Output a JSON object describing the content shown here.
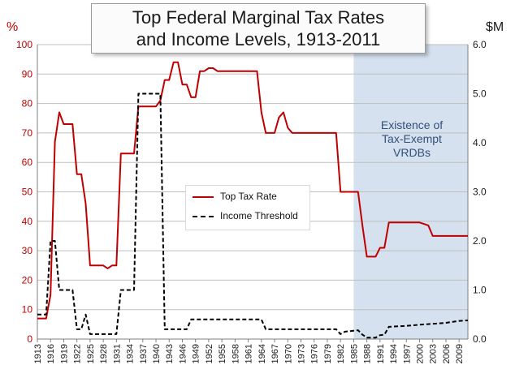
{
  "chart_data": {
    "type": "line",
    "title_lines": [
      "Top Federal Marginal Tax Rates",
      "and Income Levels, 1913-2011"
    ],
    "ylabel": "%",
    "y2label": "$M",
    "ylim": [
      0,
      100
    ],
    "y2lim": [
      0,
      6
    ],
    "xlim": [
      1913,
      2011
    ],
    "yticks": [
      "0",
      "10",
      "20",
      "30",
      "40",
      "50",
      "60",
      "70",
      "80",
      "90",
      "100"
    ],
    "y2ticks": [
      "0.0",
      "1.0",
      "2.0",
      "3.0",
      "4.0",
      "5.0",
      "6.0"
    ],
    "xticks": [
      "1913",
      "1916",
      "1919",
      "1922",
      "1925",
      "1928",
      "1931",
      "1934",
      "1937",
      "1940",
      "1943",
      "1946",
      "1949",
      "1952",
      "1955",
      "1958",
      "1961",
      "1964",
      "1967",
      "1970",
      "1973",
      "1976",
      "1979",
      "1982",
      "1985",
      "1988",
      "1991",
      "1994",
      "1997",
      "2000",
      "2003",
      "2006",
      "2009"
    ],
    "grid": true,
    "legend_position": "center-left",
    "colors": {
      "tax_rate": "#c00000",
      "threshold": "#000000",
      "shade": "#d5e1ef",
      "annotation": "#33507a"
    },
    "shaded_region": {
      "x_start": 1985,
      "x_end": 2011,
      "label_lines": [
        "Existence of",
        "Tax-Exempt",
        "VRDBs"
      ]
    },
    "series": [
      {
        "name": "Top Tax Rate",
        "axis": "left",
        "points": [
          [
            1913,
            7
          ],
          [
            1915,
            7
          ],
          [
            1916,
            15
          ],
          [
            1917,
            67
          ],
          [
            1918,
            77
          ],
          [
            1919,
            73
          ],
          [
            1921,
            73
          ],
          [
            1922,
            56
          ],
          [
            1923,
            56
          ],
          [
            1924,
            46
          ],
          [
            1925,
            25
          ],
          [
            1928,
            25
          ],
          [
            1929,
            24
          ],
          [
            1930,
            25
          ],
          [
            1931,
            25
          ],
          [
            1932,
            63
          ],
          [
            1935,
            63
          ],
          [
            1936,
            79
          ],
          [
            1940,
            79
          ],
          [
            1941,
            81
          ],
          [
            1942,
            88
          ],
          [
            1943,
            88
          ],
          [
            1944,
            94
          ],
          [
            1945,
            94
          ],
          [
            1946,
            86.45
          ],
          [
            1947,
            86.45
          ],
          [
            1948,
            82.13
          ],
          [
            1949,
            82.13
          ],
          [
            1950,
            91
          ],
          [
            1951,
            91
          ],
          [
            1952,
            92
          ],
          [
            1953,
            92
          ],
          [
            1954,
            91
          ],
          [
            1963,
            91
          ],
          [
            1964,
            77
          ],
          [
            1965,
            70
          ],
          [
            1967,
            70
          ],
          [
            1968,
            75.25
          ],
          [
            1969,
            77
          ],
          [
            1970,
            71.75
          ],
          [
            1971,
            70
          ],
          [
            1981,
            70
          ],
          [
            1982,
            50
          ],
          [
            1986,
            50
          ],
          [
            1987,
            38.5
          ],
          [
            1988,
            28
          ],
          [
            1990,
            28
          ],
          [
            1991,
            31
          ],
          [
            1992,
            31
          ],
          [
            1993,
            39.6
          ],
          [
            2000,
            39.6
          ],
          [
            2001,
            39.1
          ],
          [
            2002,
            38.6
          ],
          [
            2003,
            35
          ],
          [
            2011,
            35
          ]
        ]
      },
      {
        "name": "Income Threshold",
        "axis": "right",
        "points": [
          [
            1913,
            0.5
          ],
          [
            1915,
            0.5
          ],
          [
            1916,
            2.0
          ],
          [
            1917,
            2.0
          ],
          [
            1918,
            1.0
          ],
          [
            1921,
            1.0
          ],
          [
            1922,
            0.2
          ],
          [
            1923,
            0.2
          ],
          [
            1924,
            0.5
          ],
          [
            1925,
            0.1
          ],
          [
            1931,
            0.1
          ],
          [
            1932,
            1.0
          ],
          [
            1935,
            1.0
          ],
          [
            1936,
            5.0
          ],
          [
            1941,
            5.0
          ],
          [
            1942,
            0.2
          ],
          [
            1947,
            0.2
          ],
          [
            1948,
            0.4
          ],
          [
            1964,
            0.4
          ],
          [
            1965,
            0.2
          ],
          [
            1981,
            0.2
          ],
          [
            1982,
            0.1
          ],
          [
            1983,
            0.15
          ],
          [
            1986,
            0.18
          ],
          [
            1987,
            0.09
          ],
          [
            1988,
            0.03
          ],
          [
            1990,
            0.03
          ],
          [
            1991,
            0.08
          ],
          [
            1992,
            0.09
          ],
          [
            1993,
            0.25
          ],
          [
            1997,
            0.27
          ],
          [
            2001,
            0.3
          ],
          [
            2003,
            0.31
          ],
          [
            2006,
            0.33
          ],
          [
            2009,
            0.37
          ],
          [
            2011,
            0.38
          ]
        ]
      }
    ]
  }
}
